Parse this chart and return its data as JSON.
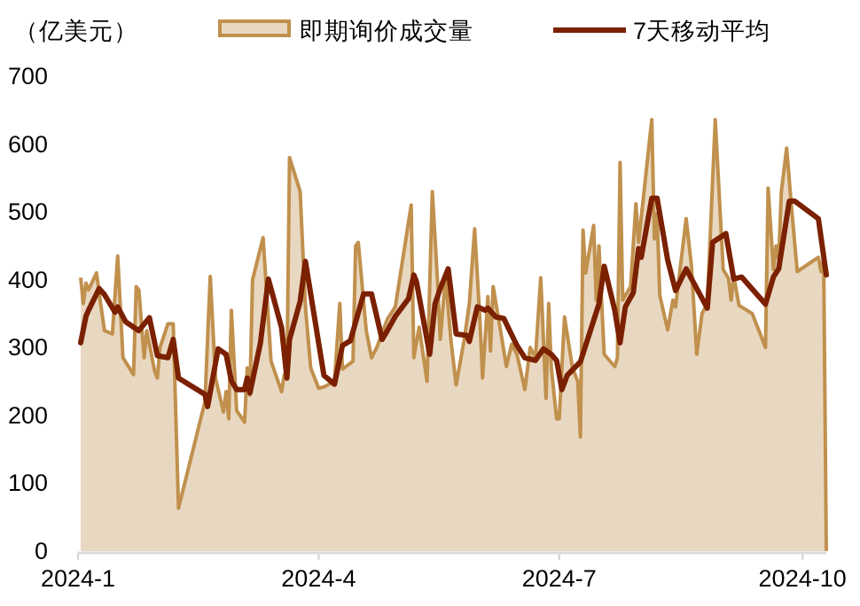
{
  "chart_data": {
    "type": "area",
    "ylabel": "（亿美元）",
    "legend": "top",
    "xlim": [
      "2024-01-01",
      "2024-10-10"
    ],
    "ylim": [
      0,
      700
    ],
    "yticks": [
      0,
      100,
      200,
      300,
      400,
      500,
      600,
      700
    ],
    "xticks": [
      {
        "value": "2024-01-01",
        "label": "2024-1"
      },
      {
        "value": "2024-04-01",
        "label": "2024-4"
      },
      {
        "value": "2024-07-01",
        "label": "2024-7"
      },
      {
        "value": "2024-10-01",
        "label": "2024-10"
      }
    ],
    "series": [
      {
        "name": "即期询价成交量",
        "color": "#c0904d",
        "x": [
          "2024-01-02",
          "2024-01-03",
          "2024-01-04",
          "2024-01-05",
          "2024-01-08",
          "2024-01-09",
          "2024-01-11",
          "2024-01-14",
          "2024-01-16",
          "2024-01-18",
          "2024-01-22",
          "2024-01-23",
          "2024-01-24",
          "2024-01-26",
          "2024-01-27",
          "2024-01-30",
          "2024-01-31",
          "2024-02-01",
          "2024-02-04",
          "2024-02-06",
          "2024-02-08",
          "2024-02-18",
          "2024-02-20",
          "2024-02-22",
          "2024-02-25",
          "2024-02-26",
          "2024-02-27",
          "2024-02-28",
          "2024-03-01",
          "2024-03-04",
          "2024-03-05",
          "2024-03-06",
          "2024-03-07",
          "2024-03-11",
          "2024-03-14",
          "2024-03-18",
          "2024-03-19",
          "2024-03-20",
          "2024-03-21",
          "2024-03-25",
          "2024-03-27",
          "2024-03-29",
          "2024-04-01",
          "2024-04-03",
          "2024-04-07",
          "2024-04-09",
          "2024-04-10",
          "2024-04-14",
          "2024-04-15",
          "2024-04-16",
          "2024-04-19",
          "2024-04-21",
          "2024-04-23",
          "2024-04-27",
          "2024-04-30",
          "2024-05-06",
          "2024-05-07",
          "2024-05-09",
          "2024-05-12",
          "2024-05-14",
          "2024-05-16",
          "2024-05-17",
          "2024-05-19",
          "2024-05-21",
          "2024-05-23",
          "2024-05-26",
          "2024-05-28",
          "2024-05-30",
          "2024-06-01",
          "2024-06-02",
          "2024-06-04",
          "2024-06-05",
          "2024-06-06",
          "2024-06-09",
          "2024-06-11",
          "2024-06-13",
          "2024-06-15",
          "2024-06-18",
          "2024-06-20",
          "2024-06-22",
          "2024-06-24",
          "2024-06-26",
          "2024-06-27",
          "2024-06-28",
          "2024-06-30",
          "2024-07-01",
          "2024-07-03",
          "2024-07-06",
          "2024-07-08",
          "2024-07-09",
          "2024-07-10",
          "2024-07-11",
          "2024-07-14",
          "2024-07-15",
          "2024-07-16",
          "2024-07-18",
          "2024-07-22",
          "2024-07-23",
          "2024-07-24",
          "2024-07-25",
          "2024-07-28",
          "2024-07-30",
          "2024-07-31",
          "2024-08-05",
          "2024-08-06",
          "2024-08-07",
          "2024-08-08",
          "2024-08-11",
          "2024-08-13",
          "2024-08-14",
          "2024-08-18",
          "2024-08-20",
          "2024-08-22",
          "2024-08-24",
          "2024-08-26",
          "2024-08-29",
          "2024-09-01",
          "2024-09-03",
          "2024-09-04",
          "2024-09-05",
          "2024-09-07",
          "2024-09-12",
          "2024-09-17",
          "2024-09-18",
          "2024-09-20",
          "2024-09-21",
          "2024-09-22",
          "2024-09-23",
          "2024-09-25",
          "2024-09-27",
          "2024-09-29",
          "2024-10-07",
          "2024-10-08",
          "2024-10-09",
          "2024-10-10"
        ],
        "values": [
          403,
          365,
          395,
          385,
          410,
          380,
          325,
          320,
          435,
          285,
          260,
          390,
          385,
          285,
          325,
          265,
          255,
          300,
          335,
          335,
          63,
          220,
          405,
          255,
          205,
          235,
          195,
          355,
          207,
          190,
          270,
          230,
          400,
          462,
          280,
          235,
          260,
          260,
          580,
          530,
          360,
          270,
          240,
          242,
          250,
          365,
          268,
          280,
          450,
          455,
          325,
          285,
          300,
          342,
          360,
          510,
          285,
          330,
          250,
          530,
          395,
          312,
          405,
          312,
          245,
          310,
          365,
          475,
          340,
          255,
          375,
          295,
          390,
          320,
          272,
          305,
          290,
          238,
          300,
          285,
          403,
          225,
          365,
          270,
          195,
          195,
          345,
          270,
          250,
          168,
          473,
          410,
          480,
          370,
          450,
          290,
          272,
          285,
          573,
          370,
          390,
          512,
          455,
          636,
          460,
          498,
          377,
          326,
          370,
          360,
          490,
          420,
          290,
          350,
          365,
          636,
          415,
          402,
          370,
          405,
          362,
          350,
          300,
          535,
          415,
          450,
          430,
          530,
          594,
          500,
          412,
          433,
          412,
          430,
          0
        ]
      },
      {
        "name": "7天移动平均",
        "type": "line",
        "color": "#7b2000",
        "x": [
          "2024-01-02",
          "2024-01-04",
          "2024-01-05",
          "2024-01-09",
          "2024-01-11",
          "2024-01-15",
          "2024-01-16",
          "2024-01-19",
          "2024-01-24",
          "2024-01-28",
          "2024-01-31",
          "2024-02-04",
          "2024-02-06",
          "2024-02-08",
          "2024-02-18",
          "2024-02-19",
          "2024-02-23",
          "2024-02-26",
          "2024-02-28",
          "2024-03-01",
          "2024-03-04",
          "2024-03-05",
          "2024-03-06",
          "2024-03-10",
          "2024-03-13",
          "2024-03-18",
          "2024-03-20",
          "2024-03-21",
          "2024-03-25",
          "2024-03-27",
          "2024-04-03",
          "2024-04-07",
          "2024-04-10",
          "2024-04-13",
          "2024-04-18",
          "2024-04-21",
          "2024-04-25",
          "2024-04-27",
          "2024-04-30",
          "2024-05-05",
          "2024-05-07",
          "2024-05-08",
          "2024-05-13",
          "2024-05-15",
          "2024-05-17",
          "2024-05-20",
          "2024-05-23",
          "2024-05-27",
          "2024-05-28",
          "2024-05-31",
          "2024-06-03",
          "2024-06-04",
          "2024-06-07",
          "2024-06-10",
          "2024-06-15",
          "2024-06-18",
          "2024-06-22",
          "2024-06-25",
          "2024-06-28",
          "2024-06-30",
          "2024-07-02",
          "2024-07-04",
          "2024-07-09",
          "2024-07-16",
          "2024-07-18",
          "2024-07-22",
          "2024-07-24",
          "2024-07-26",
          "2024-07-29",
          "2024-07-31",
          "2024-08-01",
          "2024-08-05",
          "2024-08-07",
          "2024-08-11",
          "2024-08-14",
          "2024-08-18",
          "2024-08-26",
          "2024-08-28",
          "2024-09-02",
          "2024-09-05",
          "2024-09-08",
          "2024-09-17",
          "2024-09-20",
          "2024-09-22",
          "2024-09-26",
          "2024-09-28",
          "2024-10-07",
          "2024-10-10"
        ],
        "values": [
          307,
          346,
          355,
          387,
          378,
          352,
          360,
          338,
          325,
          344,
          288,
          285,
          312,
          255,
          231,
          213,
          298,
          290,
          251,
          238,
          238,
          255,
          233,
          307,
          401,
          329,
          255,
          312,
          368,
          427,
          259,
          246,
          303,
          310,
          379,
          379,
          312,
          325,
          346,
          372,
          407,
          397,
          290,
          364,
          387,
          416,
          320,
          318,
          309,
          360,
          355,
          358,
          345,
          343,
          303,
          285,
          281,
          298,
          290,
          281,
          238,
          259,
          279,
          364,
          420,
          355,
          307,
          360,
          381,
          446,
          433,
          520,
          520,
          429,
          384,
          416,
          358,
          455,
          468,
          401,
          404,
          364,
          404,
          416,
          516,
          516,
          490,
          407
        ]
      }
    ]
  }
}
